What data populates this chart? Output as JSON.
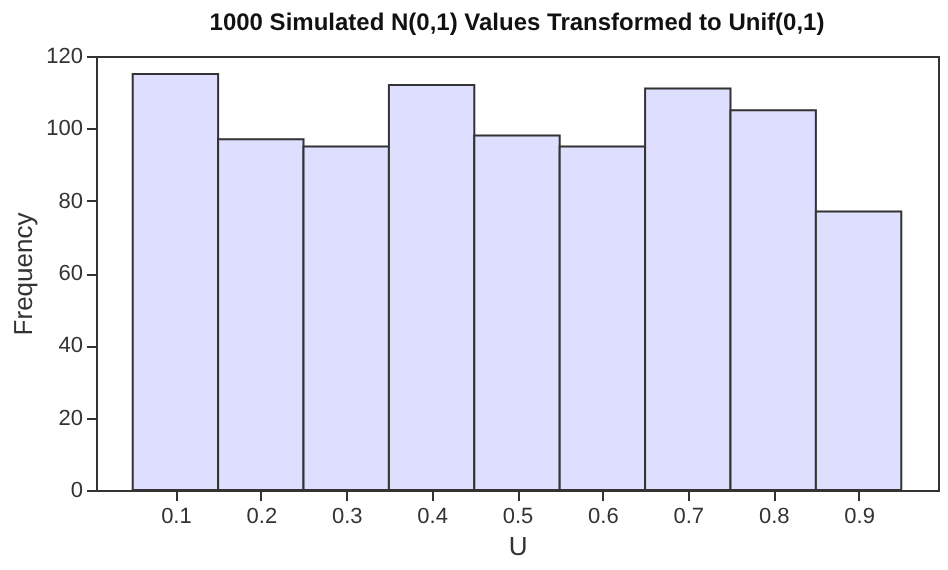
{
  "chart_data": {
    "type": "histogram",
    "title": "1000 Simulated N(0,1) Values Transformed to Unif(0,1)",
    "xlabel": "U",
    "ylabel": "Frequency",
    "bins": [
      0.05,
      0.15,
      0.25,
      0.35,
      0.45,
      0.55,
      0.65,
      0.75,
      0.85,
      0.95
    ],
    "values": [
      115,
      97,
      95,
      112,
      98,
      95,
      111,
      105,
      77
    ],
    "color": "#dedeff",
    "xlim": [
      0.007,
      0.993
    ],
    "xticks": [
      0.1,
      0.2,
      0.3,
      0.4,
      0.5,
      0.6,
      0.7,
      0.8,
      0.9
    ],
    "ylim": [
      0,
      120
    ],
    "yticks": [
      0,
      20,
      40,
      60,
      80,
      100,
      120
    ],
    "grid": false
  }
}
